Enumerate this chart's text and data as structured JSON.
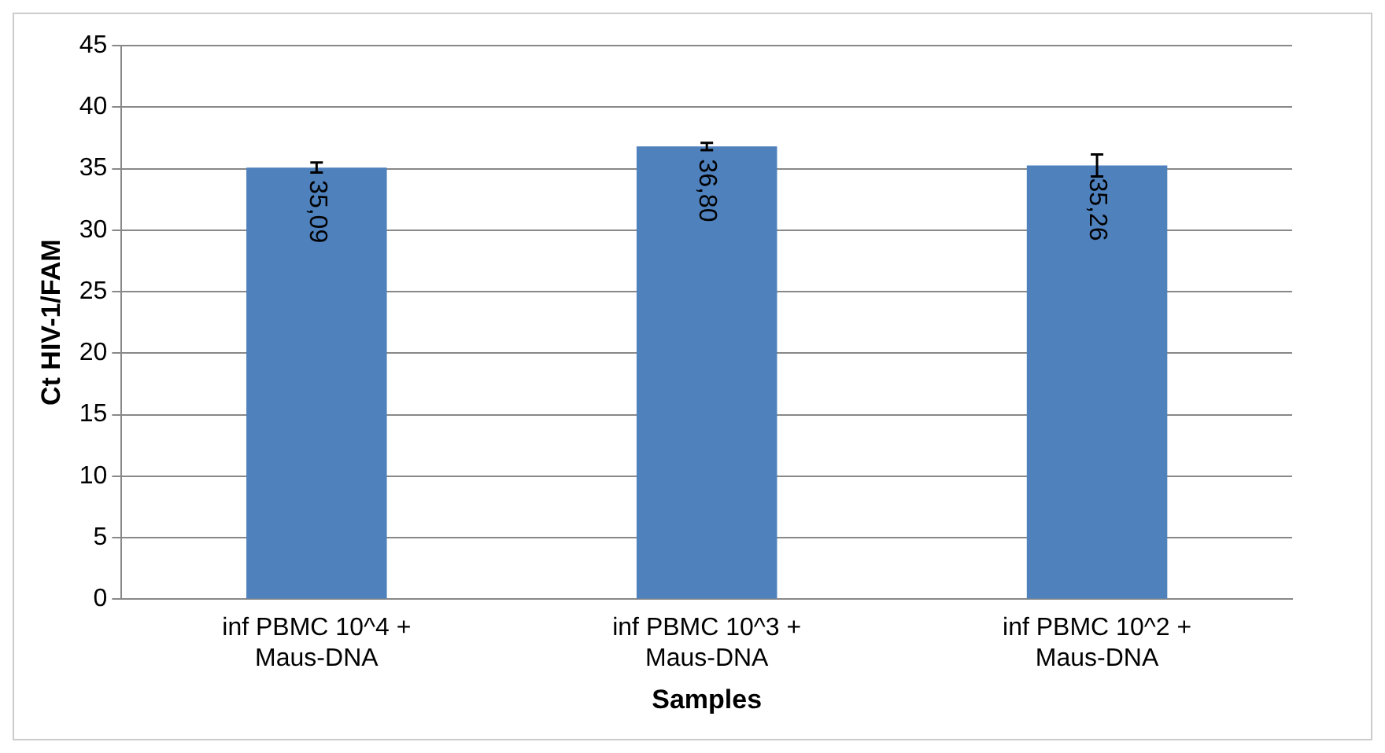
{
  "chart_data": {
    "type": "bar",
    "xlabel": "Samples",
    "ylabel": "Ct HIV-1/FAM",
    "categories": [
      "inf PBMC 10^4 + Maus-DNA",
      "inf PBMC 10^3 + Maus-DNA",
      "inf PBMC 10^2 + Maus-DNA"
    ],
    "values": [
      35.09,
      36.8,
      35.26
    ],
    "color": "#4f81bd",
    "errors": [
      0.4,
      0.3,
      0.9
    ],
    "value_labels": [
      "35,09",
      "36,80",
      "35,26"
    ],
    "ylim": [
      0,
      45
    ],
    "yticks": [
      0,
      5,
      10,
      15,
      20,
      25,
      30,
      35,
      40,
      45
    ],
    "grid": "y",
    "legend": false
  }
}
